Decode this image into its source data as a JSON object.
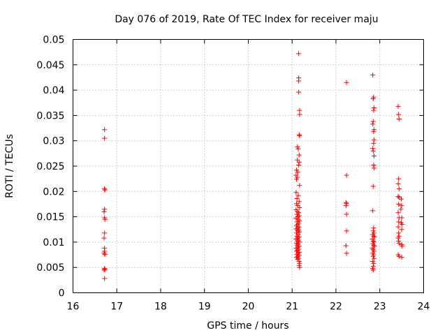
{
  "chart_data": {
    "type": "scatter",
    "title": "Day 076 of 2019, Rate Of TEC Index for receiver maju",
    "xlabel": "GPS time / hours",
    "ylabel": "ROTI / TECUs",
    "xlim": [
      16,
      24
    ],
    "ylim": [
      0,
      0.05
    ],
    "xticks": [
      "16",
      "17",
      "18",
      "19",
      "20",
      "21",
      "22",
      "23",
      "24"
    ],
    "xtick_values": [
      16,
      17,
      18,
      19,
      20,
      21,
      22,
      23,
      24
    ],
    "yticks": [
      "0",
      "0.005",
      "0.01",
      "0.015",
      "0.02",
      "0.025",
      "0.03",
      "0.035",
      "0.04",
      "0.045",
      "0.05"
    ],
    "ytick_values": [
      0,
      0.005,
      0.01,
      0.015,
      0.02,
      0.025,
      0.03,
      0.035,
      0.04,
      0.045,
      0.05
    ],
    "grid": true,
    "marker": "+",
    "color": "#ff0000",
    "series": [
      {
        "name": "ROTI",
        "points": [
          [
            16.72,
            0.0322
          ],
          [
            16.72,
            0.0305
          ],
          [
            16.72,
            0.0205
          ],
          [
            16.73,
            0.0203
          ],
          [
            16.72,
            0.0165
          ],
          [
            16.71,
            0.016
          ],
          [
            16.72,
            0.0148
          ],
          [
            16.73,
            0.0145
          ],
          [
            16.72,
            0.0118
          ],
          [
            16.71,
            0.0108
          ],
          [
            16.72,
            0.0088
          ],
          [
            16.72,
            0.0082
          ],
          [
            16.71,
            0.0078
          ],
          [
            16.73,
            0.0076
          ],
          [
            16.72,
            0.0048
          ],
          [
            16.71,
            0.0045
          ],
          [
            16.73,
            0.0046
          ],
          [
            16.72,
            0.0028
          ],
          [
            21.15,
            0.0472
          ],
          [
            21.15,
            0.0424
          ],
          [
            21.15,
            0.0418
          ],
          [
            21.15,
            0.0396
          ],
          [
            21.17,
            0.036
          ],
          [
            21.17,
            0.0352
          ],
          [
            21.16,
            0.0312
          ],
          [
            21.17,
            0.031
          ],
          [
            21.12,
            0.0288
          ],
          [
            21.14,
            0.0284
          ],
          [
            21.16,
            0.0272
          ],
          [
            21.12,
            0.0262
          ],
          [
            21.16,
            0.0258
          ],
          [
            21.15,
            0.0252
          ],
          [
            21.1,
            0.0242
          ],
          [
            21.13,
            0.0238
          ],
          [
            21.09,
            0.0232
          ],
          [
            21.12,
            0.0228
          ],
          [
            21.1,
            0.0224
          ],
          [
            21.17,
            0.0212
          ],
          [
            21.09,
            0.0198
          ],
          [
            21.14,
            0.0192
          ],
          [
            21.11,
            0.0186
          ],
          [
            21.16,
            0.018
          ],
          [
            21.1,
            0.0176
          ],
          [
            21.13,
            0.0172
          ],
          [
            21.17,
            0.0168
          ],
          [
            21.09,
            0.0164
          ],
          [
            21.12,
            0.016
          ],
          [
            21.15,
            0.0158
          ],
          [
            21.11,
            0.0155
          ],
          [
            21.16,
            0.0152
          ],
          [
            21.13,
            0.015
          ],
          [
            21.09,
            0.0147
          ],
          [
            21.14,
            0.0145
          ],
          [
            21.17,
            0.0142
          ],
          [
            21.11,
            0.014
          ],
          [
            21.15,
            0.0137
          ],
          [
            21.12,
            0.0135
          ],
          [
            21.1,
            0.0132
          ],
          [
            21.16,
            0.013
          ],
          [
            21.13,
            0.0128
          ],
          [
            21.09,
            0.0126
          ],
          [
            21.15,
            0.0124
          ],
          [
            21.12,
            0.0122
          ],
          [
            21.17,
            0.012
          ],
          [
            21.1,
            0.0118
          ],
          [
            21.14,
            0.0115
          ],
          [
            21.11,
            0.0112
          ],
          [
            21.16,
            0.011
          ],
          [
            21.13,
            0.0108
          ],
          [
            21.09,
            0.0106
          ],
          [
            21.15,
            0.0104
          ],
          [
            21.12,
            0.0102
          ],
          [
            21.17,
            0.01
          ],
          [
            21.1,
            0.0098
          ],
          [
            21.14,
            0.0096
          ],
          [
            21.11,
            0.0094
          ],
          [
            21.16,
            0.0092
          ],
          [
            21.13,
            0.009
          ],
          [
            21.09,
            0.0088
          ],
          [
            21.15,
            0.0086
          ],
          [
            21.12,
            0.0084
          ],
          [
            21.1,
            0.0082
          ],
          [
            21.17,
            0.008
          ],
          [
            21.14,
            0.0078
          ],
          [
            21.11,
            0.0076
          ],
          [
            21.16,
            0.0074
          ],
          [
            21.13,
            0.0072
          ],
          [
            21.1,
            0.007
          ],
          [
            21.15,
            0.0068
          ],
          [
            21.12,
            0.0066
          ],
          [
            21.16,
            0.0062
          ],
          [
            21.17,
            0.0058
          ],
          [
            21.16,
            0.0054
          ],
          [
            21.17,
            0.005
          ],
          [
            22.24,
            0.0415
          ],
          [
            22.24,
            0.0232
          ],
          [
            22.23,
            0.0178
          ],
          [
            22.24,
            0.0176
          ],
          [
            22.23,
            0.0172
          ],
          [
            22.24,
            0.0155
          ],
          [
            22.24,
            0.0122
          ],
          [
            22.23,
            0.0093
          ],
          [
            22.24,
            0.0078
          ],
          [
            22.84,
            0.043
          ],
          [
            22.86,
            0.0386
          ],
          [
            22.85,
            0.0383
          ],
          [
            22.87,
            0.0365
          ],
          [
            22.86,
            0.036
          ],
          [
            22.85,
            0.0338
          ],
          [
            22.84,
            0.0333
          ],
          [
            22.87,
            0.0322
          ],
          [
            22.86,
            0.0318
          ],
          [
            22.87,
            0.0302
          ],
          [
            22.86,
            0.0295
          ],
          [
            22.84,
            0.0285
          ],
          [
            22.85,
            0.028
          ],
          [
            22.87,
            0.027
          ],
          [
            22.86,
            0.0252
          ],
          [
            22.87,
            0.0246
          ],
          [
            22.85,
            0.021
          ],
          [
            22.84,
            0.0162
          ],
          [
            22.86,
            0.0128
          ],
          [
            22.85,
            0.0122
          ],
          [
            22.87,
            0.0118
          ],
          [
            22.84,
            0.0115
          ],
          [
            22.86,
            0.0112
          ],
          [
            22.88,
            0.011
          ],
          [
            22.83,
            0.0106
          ],
          [
            22.85,
            0.0102
          ],
          [
            22.87,
            0.01
          ],
          [
            22.84,
            0.0097
          ],
          [
            22.86,
            0.0094
          ],
          [
            22.88,
            0.0092
          ],
          [
            22.83,
            0.0088
          ],
          [
            22.85,
            0.0085
          ],
          [
            22.87,
            0.0082
          ],
          [
            22.84,
            0.0078
          ],
          [
            22.86,
            0.0075
          ],
          [
            22.85,
            0.0072
          ],
          [
            22.87,
            0.0068
          ],
          [
            22.84,
            0.0062
          ],
          [
            22.86,
            0.0058
          ],
          [
            22.85,
            0.0052
          ],
          [
            22.84,
            0.0048
          ],
          [
            22.85,
            0.0045
          ],
          [
            23.42,
            0.0368
          ],
          [
            23.43,
            0.0352
          ],
          [
            23.44,
            0.0343
          ],
          [
            23.43,
            0.0225
          ],
          [
            23.42,
            0.0215
          ],
          [
            23.44,
            0.0205
          ],
          [
            23.42,
            0.019
          ],
          [
            23.44,
            0.0188
          ],
          [
            23.49,
            0.0185
          ],
          [
            23.43,
            0.0175
          ],
          [
            23.5,
            0.0172
          ],
          [
            23.48,
            0.0165
          ],
          [
            23.42,
            0.0158
          ],
          [
            23.44,
            0.0148
          ],
          [
            23.5,
            0.0148
          ],
          [
            23.43,
            0.014
          ],
          [
            23.49,
            0.0138
          ],
          [
            23.51,
            0.0135
          ],
          [
            23.42,
            0.013
          ],
          [
            23.5,
            0.0125
          ],
          [
            23.43,
            0.0118
          ],
          [
            23.44,
            0.0112
          ],
          [
            23.42,
            0.0108
          ],
          [
            23.43,
            0.0102
          ],
          [
            23.44,
            0.0098
          ],
          [
            23.5,
            0.0095
          ],
          [
            23.51,
            0.0092
          ],
          [
            23.42,
            0.0075
          ],
          [
            23.44,
            0.0072
          ],
          [
            23.5,
            0.007
          ]
        ]
      }
    ]
  }
}
